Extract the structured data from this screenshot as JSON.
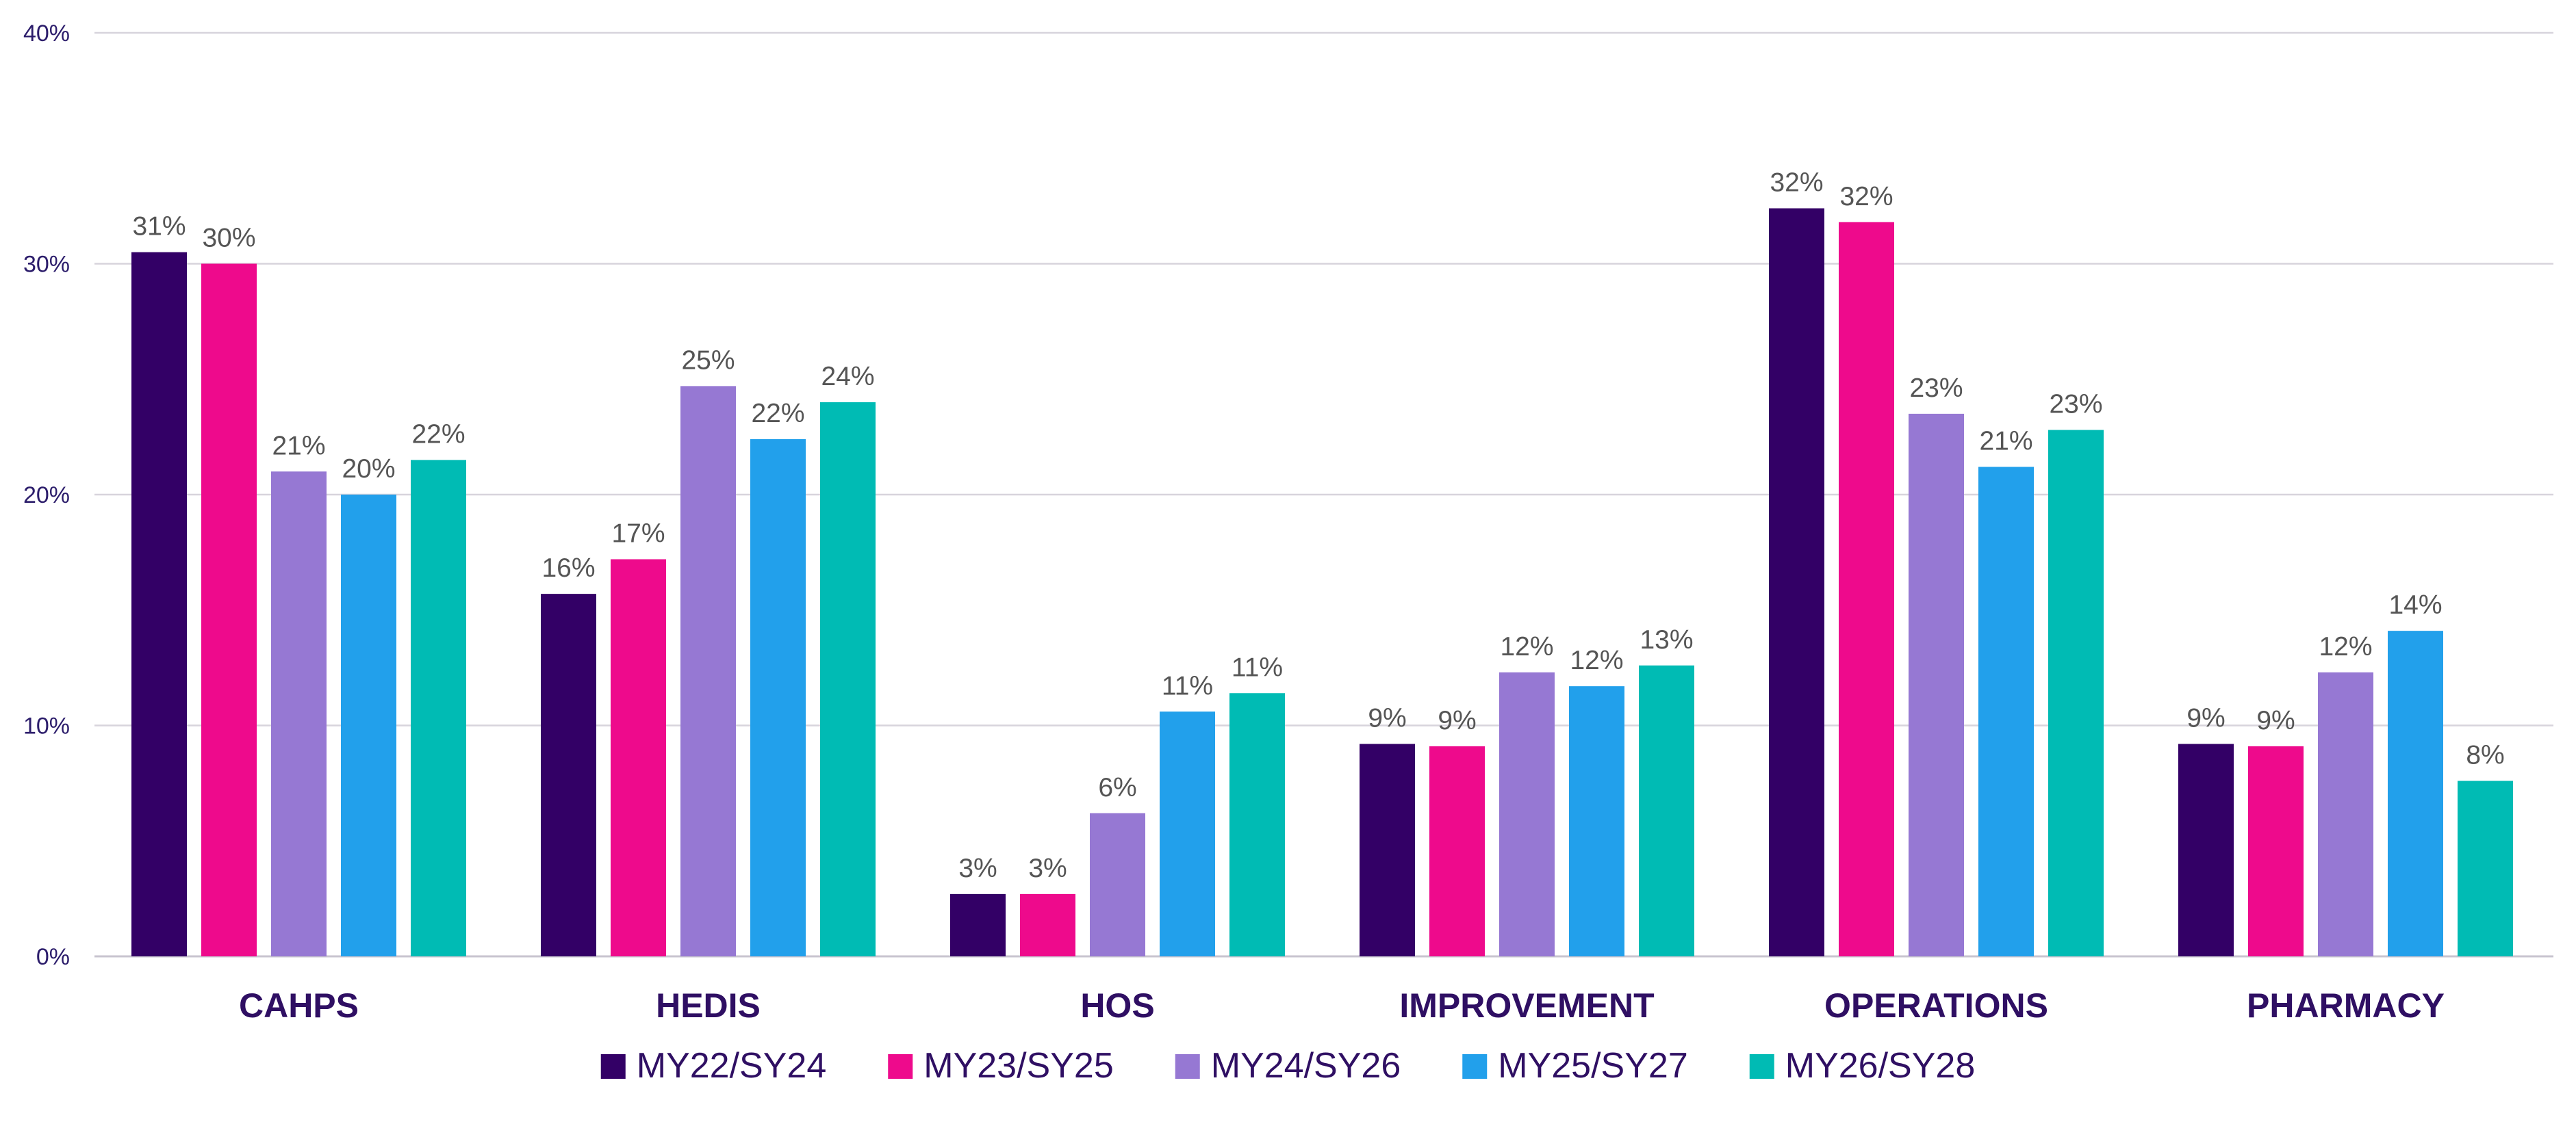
{
  "chart_data": {
    "type": "bar",
    "categories": [
      "CAHPS",
      "HEDIS",
      "HOS",
      "IMPROVEMENT",
      "OPERATIONS",
      "PHARMACY"
    ],
    "series": [
      {
        "name": "MY22/SY24",
        "color": "#330066",
        "values": [
          30.5,
          15.7,
          2.7,
          9.2,
          32.4,
          9.2
        ],
        "labels": [
          "31%",
          "16%",
          "3%",
          "9%",
          "32%",
          "9%"
        ]
      },
      {
        "name": "MY23/SY25",
        "color": "#ee0a8c",
        "values": [
          30.0,
          17.2,
          2.7,
          9.1,
          31.8,
          9.1
        ],
        "labels": [
          "30%",
          "17%",
          "3%",
          "9%",
          "32%",
          "9%"
        ]
      },
      {
        "name": "MY24/SY26",
        "color": "#9678d3",
        "values": [
          21.0,
          24.7,
          6.2,
          12.3,
          23.5,
          12.3
        ],
        "labels": [
          "21%",
          "25%",
          "6%",
          "12%",
          "23%",
          "12%"
        ]
      },
      {
        "name": "MY25/SY27",
        "color": "#22a0eb",
        "values": [
          20.0,
          22.4,
          10.6,
          11.7,
          21.2,
          14.1
        ],
        "labels": [
          "20%",
          "22%",
          "11%",
          "12%",
          "21%",
          "14%"
        ]
      },
      {
        "name": "MY26/SY28",
        "color": "#00bbb4",
        "values": [
          21.5,
          24.0,
          11.4,
          12.6,
          22.8,
          7.6
        ],
        "labels": [
          "22%",
          "24%",
          "11%",
          "13%",
          "23%",
          "8%"
        ]
      }
    ],
    "y_ticks": [
      0,
      10,
      20,
      30,
      40
    ],
    "y_tick_labels": [
      "0%",
      "10%",
      "20%",
      "30%",
      "40%"
    ],
    "ylim": [
      0,
      40
    ],
    "title": "",
    "xlabel": "",
    "ylabel": "",
    "grid": true,
    "legend_position": "bottom"
  }
}
